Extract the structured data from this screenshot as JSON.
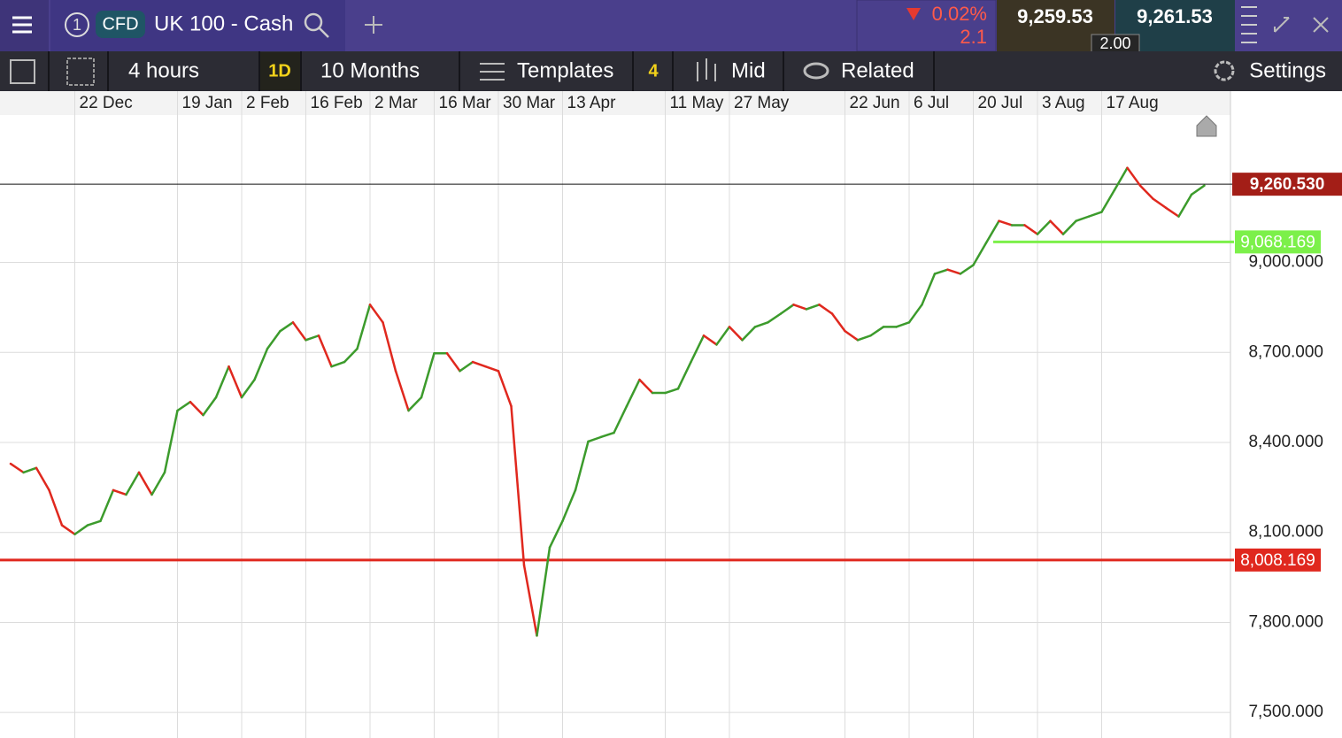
{
  "header": {
    "tab_number": "1",
    "badge": "CFD",
    "instrument": "UK 100 - Cash",
    "change_percent": "0.02%",
    "change_points": "2.1",
    "sell_price": "9,259.53",
    "buy_price": "9,261.53",
    "spread": "2.00"
  },
  "toolbar": {
    "interval": "4 hours",
    "period_button": "1D",
    "range": "10 Months",
    "templates": "Templates",
    "indicator_count": "4",
    "price_type": "Mid",
    "related": "Related",
    "settings": "Settings"
  },
  "chart_data": {
    "type": "line",
    "up_color": "#3c9b2c",
    "down_color": "#e0281e",
    "categories": [
      null,
      null,
      null,
      null,
      null,
      "22 Dec",
      null,
      null,
      null,
      null,
      null,
      null,
      null,
      "19 Jan",
      null,
      null,
      null,
      null,
      "2 Feb",
      null,
      null,
      null,
      null,
      "16 Feb",
      null,
      null,
      null,
      null,
      "2 Mar",
      null,
      null,
      null,
      null,
      "16 Mar",
      null,
      null,
      null,
      null,
      "30 Mar",
      null,
      null,
      null,
      null,
      "13 Apr",
      null,
      null,
      null,
      null,
      null,
      null,
      null,
      "11 May",
      null,
      null,
      null,
      null,
      "27 May",
      null,
      null,
      null,
      null,
      null,
      null,
      null,
      null,
      "22 Jun",
      null,
      null,
      null,
      null,
      "6 Jul",
      null,
      null,
      null,
      null,
      "20 Jul",
      null,
      null,
      null,
      null,
      "3 Aug",
      null,
      null,
      null,
      null,
      "17 Aug",
      null,
      null,
      null,
      null,
      null,
      null,
      null,
      null
    ],
    "values": [
      8329,
      8300,
      8315,
      8241,
      8124,
      8094,
      8124,
      8138,
      8241,
      8226,
      8300,
      8226,
      8300,
      8506,
      8535,
      8491,
      8550,
      8653,
      8550,
      8609,
      8712,
      8771,
      8800,
      8741,
      8756,
      8653,
      8668,
      8712,
      8859,
      8800,
      8638,
      8506,
      8550,
      8697,
      8697,
      8638,
      8668,
      8653,
      8638,
      8521,
      7991,
      7756,
      8050,
      8138,
      8241,
      8403,
      8418,
      8432,
      8521,
      8609,
      8565,
      8565,
      8579,
      8668,
      8756,
      8726,
      8785,
      8741,
      8785,
      8800,
      8829,
      8859,
      8844,
      8859,
      8829,
      8771,
      8741,
      8756,
      8785,
      8785,
      8800,
      8859,
      8962,
      8976,
      8962,
      8991,
      9065,
      9138,
      9124,
      9124,
      9094,
      9138,
      9094,
      9138,
      9153,
      9168,
      9241,
      9315,
      9256,
      9212,
      9182,
      9153,
      9226,
      9256
    ],
    "ylim": [
      7415,
      9491
    ],
    "yticks": [
      {
        "value": 7500,
        "label": "7,500.000"
      },
      {
        "value": 7800,
        "label": "7,800.000"
      },
      {
        "value": 8100,
        "label": "8,100.000"
      },
      {
        "value": 8400,
        "label": "8,400.000"
      },
      {
        "value": 8700,
        "label": "8,700.000"
      },
      {
        "value": 9000,
        "label": "9,000.000"
      }
    ],
    "grid": true,
    "price_lines": [
      {
        "value": 9260.53,
        "label": "9,260.530",
        "color": "#a31e17",
        "line_color": "#111111"
      },
      {
        "value": 9068.169,
        "label": "9,068.169",
        "color": "#7cf04a",
        "line_color": "#7cf04a"
      },
      {
        "value": 8008.169,
        "label": "8,008.169",
        "color": "#e0281e",
        "line_color": "#e0281e"
      }
    ]
  }
}
